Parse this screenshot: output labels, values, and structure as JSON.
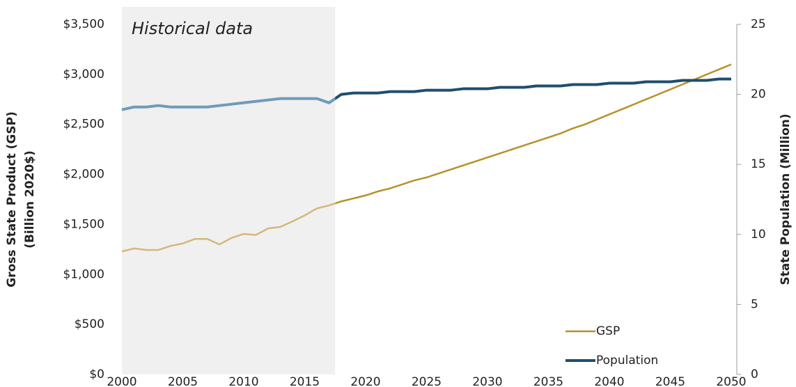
{
  "chart_data": {
    "type": "line",
    "ylabel": [
      "Gross State Product (GSP)",
      "(Billion 2020$)"
    ],
    "y2label": "State Population (Million)",
    "shaded_region": {
      "x": [
        2000,
        2017.5
      ],
      "label": "Historical data",
      "color": "#f0f0f0"
    },
    "x": [
      2000,
      2001,
      2002,
      2003,
      2004,
      2005,
      2006,
      2007,
      2008,
      2009,
      2010,
      2011,
      2012,
      2013,
      2014,
      2015,
      2016,
      2017,
      2018,
      2019,
      2020,
      2021,
      2022,
      2023,
      2024,
      2025,
      2026,
      2027,
      2028,
      2029,
      2030,
      2031,
      2032,
      2033,
      2034,
      2035,
      2036,
      2037,
      2038,
      2039,
      2040,
      2041,
      2042,
      2043,
      2044,
      2045,
      2046,
      2047,
      2048,
      2049,
      2050
    ],
    "series": [
      {
        "name": "GSP",
        "color": "#b8902a",
        "historical_color": "#d4b87a",
        "values": [
          1230,
          1260,
          1245,
          1245,
          1285,
          1310,
          1355,
          1355,
          1300,
          1365,
          1405,
          1395,
          1460,
          1475,
          1530,
          1590,
          1660,
          1690,
          1730,
          1760,
          1790,
          1830,
          1860,
          1900,
          1940,
          1970,
          2010,
          2050,
          2090,
          2130,
          2170,
          2210,
          2250,
          2290,
          2330,
          2370,
          2410,
          2460,
          2500,
          2550,
          2600,
          2650,
          2700,
          2750,
          2800,
          2850,
          2900,
          2950,
          3000,
          3050,
          3100
        ]
      },
      {
        "name": "Population",
        "color": "#1f4e6e",
        "historical_color": "#6f9bb8",
        "axis": "y2",
        "values": [
          18.9,
          19.1,
          19.1,
          19.2,
          19.1,
          19.1,
          19.1,
          19.1,
          19.2,
          19.3,
          19.4,
          19.5,
          19.6,
          19.7,
          19.7,
          19.7,
          19.7,
          19.4,
          20.0,
          20.1,
          20.1,
          20.1,
          20.2,
          20.2,
          20.2,
          20.3,
          20.3,
          20.3,
          20.4,
          20.4,
          20.4,
          20.5,
          20.5,
          20.5,
          20.6,
          20.6,
          20.6,
          20.7,
          20.7,
          20.7,
          20.8,
          20.8,
          20.8,
          20.9,
          20.9,
          20.9,
          21.0,
          21.0,
          21.0,
          21.1,
          21.1
        ]
      }
    ],
    "xlim": [
      2000,
      2050
    ],
    "xticks": [
      2000,
      2005,
      2010,
      2015,
      2020,
      2025,
      2030,
      2035,
      2040,
      2045,
      2050
    ],
    "ylim": [
      0,
      3500
    ],
    "yticks": [
      {
        "value": 0,
        "label": "$0"
      },
      {
        "value": 500,
        "label": "$500"
      },
      {
        "value": 1000,
        "label": "$1,000"
      },
      {
        "value": 1500,
        "label": "$1,500"
      },
      {
        "value": 2000,
        "label": "$2,000"
      },
      {
        "value": 2500,
        "label": "$2,500"
      },
      {
        "value": 3000,
        "label": "$3,000"
      },
      {
        "value": 3500,
        "label": "$3,500"
      }
    ],
    "y2lim": [
      0,
      25
    ],
    "y2ticks": [
      0,
      5,
      10,
      15,
      20,
      25
    ],
    "legend": "lower right",
    "grid": false
  }
}
